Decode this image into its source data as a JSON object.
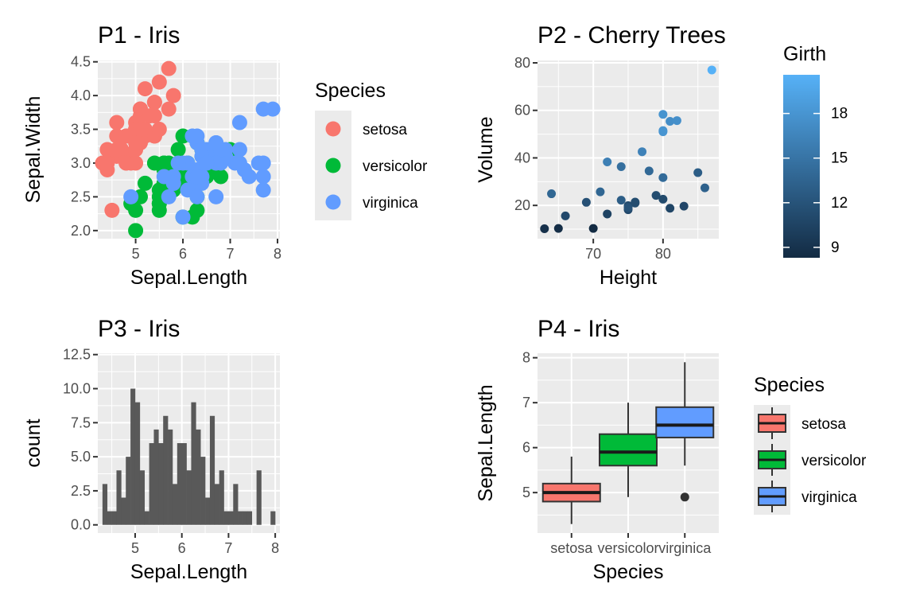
{
  "chart_data": [
    {
      "id": "p1",
      "type": "scatter",
      "title": "P1 - Iris",
      "xlabel": "Sepal.Length",
      "ylabel": "Sepal.Width",
      "xlim": [
        4.2,
        8.05
      ],
      "ylim": [
        1.88,
        4.52
      ],
      "x_ticks": [
        5,
        6,
        7,
        8
      ],
      "y_ticks": [
        2.0,
        2.5,
        3.0,
        3.5,
        4.0,
        4.5
      ],
      "y_tick_labels": [
        "2.0",
        "2.5",
        "3.0",
        "3.5",
        "4.0",
        "4.5"
      ],
      "legend": {
        "title": "Species",
        "position": "right"
      },
      "series": [
        {
          "name": "setosa",
          "color": "#F8766D",
          "points": [
            [
              5.1,
              3.5
            ],
            [
              4.9,
              3.0
            ],
            [
              4.7,
              3.2
            ],
            [
              4.6,
              3.1
            ],
            [
              5.0,
              3.6
            ],
            [
              5.4,
              3.9
            ],
            [
              4.6,
              3.4
            ],
            [
              5.0,
              3.4
            ],
            [
              4.4,
              2.9
            ],
            [
              4.9,
              3.1
            ],
            [
              5.4,
              3.7
            ],
            [
              4.8,
              3.4
            ],
            [
              4.8,
              3.0
            ],
            [
              4.3,
              3.0
            ],
            [
              5.8,
              4.0
            ],
            [
              5.7,
              4.4
            ],
            [
              5.4,
              3.9
            ],
            [
              5.1,
              3.5
            ],
            [
              5.7,
              3.8
            ],
            [
              5.1,
              3.8
            ],
            [
              5.4,
              3.4
            ],
            [
              5.1,
              3.7
            ],
            [
              4.6,
              3.6
            ],
            [
              5.1,
              3.3
            ],
            [
              4.8,
              3.4
            ],
            [
              5.0,
              3.0
            ],
            [
              5.0,
              3.4
            ],
            [
              5.2,
              3.5
            ],
            [
              5.2,
              3.4
            ],
            [
              4.7,
              3.2
            ],
            [
              4.8,
              3.1
            ],
            [
              5.4,
              3.4
            ],
            [
              5.2,
              4.1
            ],
            [
              5.5,
              4.2
            ],
            [
              4.9,
              3.1
            ],
            [
              5.0,
              3.2
            ],
            [
              5.5,
              3.5
            ],
            [
              4.4,
              3.0
            ],
            [
              5.1,
              3.4
            ],
            [
              5.0,
              3.5
            ],
            [
              4.5,
              2.3
            ],
            [
              4.4,
              3.2
            ],
            [
              5.0,
              3.5
            ],
            [
              5.1,
              3.8
            ],
            [
              4.8,
              3.0
            ],
            [
              5.1,
              3.8
            ],
            [
              4.6,
              3.2
            ],
            [
              5.3,
              3.7
            ],
            [
              5.0,
              3.3
            ],
            [
              5.1,
              3.5
            ]
          ]
        },
        {
          "name": "versicolor",
          "color": "#00BA38",
          "points": [
            [
              7.0,
              3.2
            ],
            [
              6.4,
              3.2
            ],
            [
              6.9,
              3.1
            ],
            [
              5.5,
              2.3
            ],
            [
              6.5,
              2.8
            ],
            [
              5.7,
              2.8
            ],
            [
              6.3,
              3.3
            ],
            [
              4.9,
              2.4
            ],
            [
              6.6,
              2.9
            ],
            [
              5.2,
              2.7
            ],
            [
              5.0,
              2.0
            ],
            [
              5.9,
              3.0
            ],
            [
              6.0,
              2.2
            ],
            [
              6.1,
              2.9
            ],
            [
              5.6,
              2.9
            ],
            [
              6.7,
              3.1
            ],
            [
              5.6,
              3.0
            ],
            [
              5.8,
              2.7
            ],
            [
              6.2,
              2.2
            ],
            [
              5.6,
              2.5
            ],
            [
              5.9,
              3.2
            ],
            [
              6.1,
              2.8
            ],
            [
              6.3,
              2.5
            ],
            [
              6.1,
              2.8
            ],
            [
              6.4,
              2.9
            ],
            [
              6.6,
              3.0
            ],
            [
              6.8,
              2.8
            ],
            [
              6.7,
              3.0
            ],
            [
              6.0,
              2.9
            ],
            [
              5.7,
              2.6
            ],
            [
              5.5,
              2.4
            ],
            [
              5.5,
              2.4
            ],
            [
              5.8,
              2.7
            ],
            [
              6.0,
              2.7
            ],
            [
              5.4,
              3.0
            ],
            [
              6.0,
              3.4
            ],
            [
              6.7,
              3.1
            ],
            [
              6.3,
              2.3
            ],
            [
              5.6,
              3.0
            ],
            [
              5.5,
              2.5
            ],
            [
              5.5,
              2.6
            ],
            [
              6.1,
              3.0
            ],
            [
              5.8,
              2.6
            ],
            [
              5.0,
              2.3
            ],
            [
              5.6,
              2.7
            ],
            [
              5.7,
              3.0
            ],
            [
              5.7,
              2.9
            ],
            [
              6.2,
              2.9
            ],
            [
              5.1,
              2.5
            ],
            [
              5.7,
              2.8
            ]
          ]
        },
        {
          "name": "virginica",
          "color": "#619CFF",
          "points": [
            [
              6.3,
              3.3
            ],
            [
              5.8,
              2.7
            ],
            [
              7.1,
              3.0
            ],
            [
              6.3,
              2.9
            ],
            [
              6.5,
              3.0
            ],
            [
              7.6,
              3.0
            ],
            [
              4.9,
              2.5
            ],
            [
              7.3,
              2.9
            ],
            [
              6.7,
              2.5
            ],
            [
              7.2,
              3.6
            ],
            [
              6.5,
              3.2
            ],
            [
              6.4,
              2.7
            ],
            [
              6.8,
              3.0
            ],
            [
              5.7,
              2.5
            ],
            [
              5.8,
              2.8
            ],
            [
              6.4,
              3.2
            ],
            [
              6.5,
              3.0
            ],
            [
              7.7,
              3.8
            ],
            [
              7.7,
              2.6
            ],
            [
              6.0,
              2.2
            ],
            [
              6.9,
              3.2
            ],
            [
              5.6,
              2.8
            ],
            [
              7.7,
              2.8
            ],
            [
              6.3,
              2.7
            ],
            [
              6.7,
              3.3
            ],
            [
              7.2,
              3.2
            ],
            [
              6.2,
              2.8
            ],
            [
              6.1,
              3.0
            ],
            [
              6.4,
              2.8
            ],
            [
              7.2,
              3.0
            ],
            [
              7.4,
              2.8
            ],
            [
              7.9,
              3.8
            ],
            [
              6.4,
              2.8
            ],
            [
              6.3,
              2.8
            ],
            [
              6.1,
              2.6
            ],
            [
              7.7,
              3.0
            ],
            [
              6.3,
              3.4
            ],
            [
              6.4,
              3.1
            ],
            [
              6.0,
              3.0
            ],
            [
              6.9,
              3.1
            ],
            [
              6.7,
              3.1
            ],
            [
              6.9,
              3.1
            ],
            [
              5.8,
              2.7
            ],
            [
              6.8,
              3.2
            ],
            [
              6.7,
              3.3
            ],
            [
              6.7,
              3.0
            ],
            [
              6.3,
              2.5
            ],
            [
              6.5,
              3.0
            ],
            [
              6.2,
              3.4
            ],
            [
              5.9,
              3.0
            ]
          ]
        }
      ]
    },
    {
      "id": "p2",
      "type": "scatter",
      "title": "P2 - Cherry Trees",
      "xlabel": "Height",
      "ylabel": "Volume",
      "xlim": [
        62.0,
        88.0
      ],
      "ylim": [
        6.0,
        81.0
      ],
      "x_ticks": [
        70,
        80
      ],
      "y_ticks": [
        20,
        40,
        60,
        80
      ],
      "legend": {
        "title": "Girth",
        "position": "right",
        "ticks": [
          9,
          12,
          15,
          18
        ],
        "range": [
          8.3,
          20.6
        ],
        "low_color": "#132B43",
        "high_color": "#56B1F7"
      },
      "points": [
        [
          70,
          10.3,
          8.3
        ],
        [
          65,
          10.3,
          8.6
        ],
        [
          63,
          10.2,
          8.8
        ],
        [
          72,
          16.4,
          10.5
        ],
        [
          81,
          18.8,
          10.7
        ],
        [
          83,
          19.7,
          10.8
        ],
        [
          66,
          15.6,
          11.0
        ],
        [
          75,
          18.2,
          11.0
        ],
        [
          80,
          22.6,
          11.1
        ],
        [
          75,
          19.9,
          11.2
        ],
        [
          79,
          24.2,
          11.3
        ],
        [
          76,
          21.0,
          11.4
        ],
        [
          76,
          21.4,
          11.4
        ],
        [
          69,
          21.3,
          11.7
        ],
        [
          75,
          19.1,
          12.0
        ],
        [
          74,
          22.2,
          12.9
        ],
        [
          85,
          33.8,
          12.9
        ],
        [
          86,
          27.4,
          13.3
        ],
        [
          71,
          25.7,
          13.7
        ],
        [
          64,
          24.9,
          13.8
        ],
        [
          78,
          34.5,
          14.0
        ],
        [
          80,
          31.7,
          14.2
        ],
        [
          74,
          36.3,
          14.5
        ],
        [
          72,
          38.3,
          16.0
        ],
        [
          77,
          42.6,
          16.3
        ],
        [
          81,
          55.4,
          17.3
        ],
        [
          82,
          55.7,
          17.5
        ],
        [
          80,
          58.3,
          17.9
        ],
        [
          80,
          51.5,
          18.0
        ],
        [
          80,
          51.0,
          18.0
        ],
        [
          87,
          77.0,
          20.6
        ]
      ]
    },
    {
      "id": "p3",
      "type": "bar",
      "title": "P3 - Iris",
      "xlabel": "Sepal.Length",
      "ylabel": "count",
      "xlim": [
        4.2,
        8.1
      ],
      "ylim": [
        -0.6,
        12.6
      ],
      "x_ticks": [
        5,
        6,
        7,
        8
      ],
      "y_ticks": [
        0.0,
        2.5,
        5.0,
        7.5,
        10.0,
        12.5
      ],
      "y_tick_labels": [
        "0.0",
        "2.5",
        "5.0",
        "7.5",
        "10.0",
        "12.5"
      ],
      "bar_color": "#595959",
      "bins": [
        {
          "start": 4.3,
          "end": 4.4,
          "count": 3
        },
        {
          "start": 4.4,
          "end": 4.5,
          "count": 1
        },
        {
          "start": 4.5,
          "end": 4.6,
          "count": 1
        },
        {
          "start": 4.6,
          "end": 4.7,
          "count": 4
        },
        {
          "start": 4.7,
          "end": 4.8,
          "count": 2
        },
        {
          "start": 4.8,
          "end": 4.9,
          "count": 5
        },
        {
          "start": 4.9,
          "end": 5.0,
          "count": 10
        },
        {
          "start": 5.0,
          "end": 5.1,
          "count": 9
        },
        {
          "start": 5.1,
          "end": 5.2,
          "count": 4
        },
        {
          "start": 5.2,
          "end": 5.3,
          "count": 1
        },
        {
          "start": 5.3,
          "end": 5.4,
          "count": 6
        },
        {
          "start": 5.4,
          "end": 5.5,
          "count": 7
        },
        {
          "start": 5.5,
          "end": 5.6,
          "count": 6
        },
        {
          "start": 5.6,
          "end": 5.7,
          "count": 8
        },
        {
          "start": 5.7,
          "end": 5.8,
          "count": 7
        },
        {
          "start": 5.8,
          "end": 5.9,
          "count": 3
        },
        {
          "start": 5.9,
          "end": 6.0,
          "count": 6
        },
        {
          "start": 6.0,
          "end": 6.1,
          "count": 6
        },
        {
          "start": 6.1,
          "end": 6.2,
          "count": 4
        },
        {
          "start": 6.2,
          "end": 6.3,
          "count": 9
        },
        {
          "start": 6.3,
          "end": 6.4,
          "count": 7
        },
        {
          "start": 6.4,
          "end": 6.5,
          "count": 5
        },
        {
          "start": 6.5,
          "end": 6.6,
          "count": 2
        },
        {
          "start": 6.6,
          "end": 6.7,
          "count": 8
        },
        {
          "start": 6.7,
          "end": 6.8,
          "count": 3
        },
        {
          "start": 6.8,
          "end": 6.9,
          "count": 4
        },
        {
          "start": 6.9,
          "end": 7.0,
          "count": 1
        },
        {
          "start": 7.0,
          "end": 7.1,
          "count": 1
        },
        {
          "start": 7.1,
          "end": 7.2,
          "count": 3
        },
        {
          "start": 7.2,
          "end": 7.3,
          "count": 1
        },
        {
          "start": 7.3,
          "end": 7.4,
          "count": 1
        },
        {
          "start": 7.4,
          "end": 7.5,
          "count": 1
        },
        {
          "start": 7.6,
          "end": 7.7,
          "count": 4
        },
        {
          "start": 7.9,
          "end": 8.0,
          "count": 1
        }
      ]
    },
    {
      "id": "p4",
      "type": "box",
      "title": "P4 - Iris",
      "xlabel": "Species",
      "ylabel": "Sepal.Length",
      "ylim": [
        4.1,
        8.1
      ],
      "y_ticks": [
        5,
        6,
        7,
        8
      ],
      "legend": {
        "title": "Species",
        "position": "right"
      },
      "boxes": [
        {
          "name": "setosa",
          "color": "#F8766D",
          "min": 4.3,
          "q1": 4.8,
          "median": 5.0,
          "q3": 5.2,
          "max": 5.8,
          "outliers": []
        },
        {
          "name": "versicolor",
          "color": "#00BA38",
          "min": 4.9,
          "q1": 5.6,
          "median": 5.9,
          "q3": 6.3,
          "max": 7.0,
          "outliers": []
        },
        {
          "name": "virginica",
          "color": "#619CFF",
          "min": 5.6,
          "q1": 6.225,
          "median": 6.5,
          "q3": 6.9,
          "max": 7.9,
          "outliers": [
            4.9
          ]
        }
      ]
    }
  ]
}
